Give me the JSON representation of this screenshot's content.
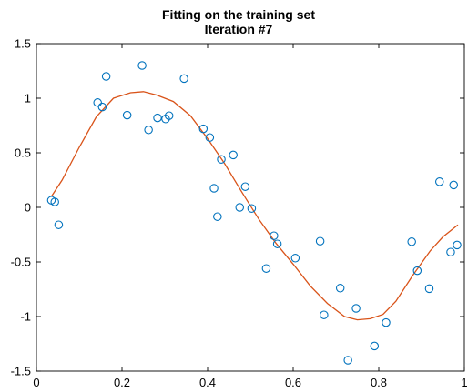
{
  "colors": {
    "fit_line": "#d95319",
    "data_points": "#0072bd",
    "axes": "#000000",
    "background": "#ffffff"
  },
  "chart_data": {
    "type": "scatter",
    "title": [
      "Fitting on the training set",
      "Iteration #7"
    ],
    "xlabel": "",
    "ylabel": "",
    "xlim": [
      0,
      1
    ],
    "ylim": [
      -1.5,
      1.5
    ],
    "grid": false,
    "legend": null,
    "x_ticks": [
      "0",
      "0.2",
      "0.4",
      "0.6",
      "0.8",
      "1"
    ],
    "y_ticks": [
      "-1.5",
      "-1",
      "-0.5",
      "0",
      "0.5",
      "1",
      "1.5"
    ],
    "series": [
      {
        "kind": "scatter",
        "marker": "open-circle",
        "color": "#0072bd",
        "x": [
          0.035,
          0.043,
          0.052,
          0.143,
          0.154,
          0.163,
          0.212,
          0.247,
          0.262,
          0.283,
          0.302,
          0.31,
          0.345,
          0.39,
          0.405,
          0.415,
          0.423,
          0.432,
          0.46,
          0.475,
          0.488,
          0.503,
          0.537,
          0.555,
          0.563,
          0.605,
          0.663,
          0.672,
          0.71,
          0.728,
          0.747,
          0.79,
          0.817,
          0.877,
          0.89,
          0.918,
          0.942,
          0.968,
          0.975,
          0.983
        ],
        "y": [
          0.065,
          0.05,
          -0.16,
          0.96,
          0.92,
          1.2,
          0.845,
          1.3,
          0.71,
          0.82,
          0.81,
          0.84,
          1.18,
          0.72,
          0.64,
          0.175,
          -0.085,
          0.44,
          0.48,
          0.0,
          0.19,
          -0.01,
          -0.56,
          -0.26,
          -0.335,
          -0.465,
          -0.31,
          -0.985,
          -0.74,
          -1.4,
          -0.925,
          -1.27,
          -1.055,
          -0.315,
          -0.58,
          -0.745,
          0.235,
          -0.41,
          0.205,
          -0.345
        ]
      },
      {
        "kind": "line",
        "color": "#d95319",
        "x": [
          0.035,
          0.06,
          0.1,
          0.14,
          0.18,
          0.22,
          0.25,
          0.28,
          0.32,
          0.36,
          0.4,
          0.44,
          0.48,
          0.52,
          0.56,
          0.6,
          0.64,
          0.68,
          0.72,
          0.75,
          0.78,
          0.81,
          0.84,
          0.88,
          0.92,
          0.95,
          0.985
        ],
        "y": [
          0.1,
          0.25,
          0.55,
          0.83,
          1.0,
          1.05,
          1.06,
          1.03,
          0.97,
          0.84,
          0.63,
          0.4,
          0.14,
          -0.11,
          -0.33,
          -0.52,
          -0.72,
          -0.88,
          -1.0,
          -1.03,
          -1.02,
          -0.98,
          -0.86,
          -0.62,
          -0.4,
          -0.27,
          -0.16
        ]
      }
    ]
  }
}
